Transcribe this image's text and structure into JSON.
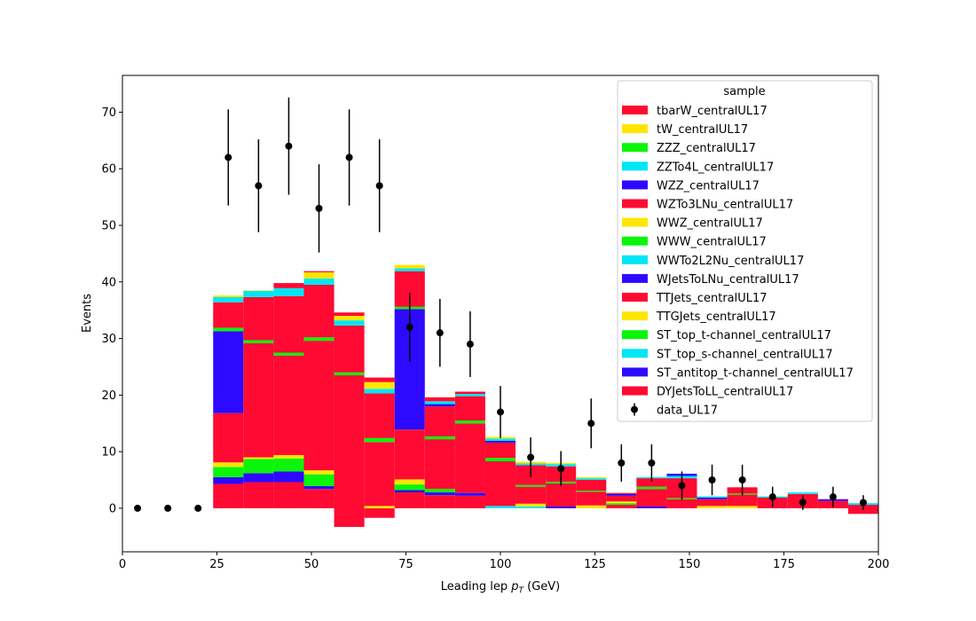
{
  "chart_data": {
    "type": "bar",
    "subtype": "stacked-histogram-with-data-points",
    "xlabel_main": "Leading lep ",
    "xlabel_sym": "p",
    "xlabel_sub": "T",
    "xlabel_unit": " (GeV)",
    "ylabel": "Events",
    "xlim": [
      0,
      200
    ],
    "ylim": [
      -7.7,
      76.5
    ],
    "x_ticks": [
      0,
      25,
      50,
      75,
      100,
      125,
      150,
      175,
      200
    ],
    "y_ticks": [
      0,
      10,
      20,
      30,
      40,
      50,
      60,
      70
    ],
    "legend": {
      "title": "sample",
      "placement": "top-right",
      "entries": [
        {
          "name": "tbarW_centralUL17",
          "color": "#ff0a32"
        },
        {
          "name": "tW_centralUL17",
          "color": "#ffe600"
        },
        {
          "name": "ZZZ_centralUL17",
          "color": "#0af50a"
        },
        {
          "name": "ZZTo4L_centralUL17",
          "color": "#00e6f5"
        },
        {
          "name": "WZZ_centralUL17",
          "color": "#2d0aff"
        },
        {
          "name": "WZTo3LNu_centralUL17",
          "color": "#ff0a32"
        },
        {
          "name": "WWZ_centralUL17",
          "color": "#ffe600"
        },
        {
          "name": "WWW_centralUL17",
          "color": "#0af50a"
        },
        {
          "name": "WWTo2L2Nu_centralUL17",
          "color": "#00e6f5"
        },
        {
          "name": "WJetsToLNu_centralUL17",
          "color": "#2d0aff"
        },
        {
          "name": "TTJets_centralUL17",
          "color": "#ff0a32"
        },
        {
          "name": "TTGJets_centralUL17",
          "color": "#ffe600"
        },
        {
          "name": "ST_top_t-channel_centralUL17",
          "color": "#0af50a"
        },
        {
          "name": "ST_top_s-channel_centralUL17",
          "color": "#00e6f5"
        },
        {
          "name": "ST_antitop_t-channel_centralUL17",
          "color": "#2d0aff"
        },
        {
          "name": "DYJetsToLL_centralUL17",
          "color": "#ff0a32"
        },
        {
          "name": "data_UL17",
          "marker": "point-with-errorbar",
          "color": "#000000"
        }
      ]
    },
    "stack_bins": [
      {
        "x0": 24,
        "x1": 32,
        "segments": [
          {
            "from": 0,
            "to": 4.3,
            "color": "#ff0a32"
          },
          {
            "from": 4.3,
            "to": 5.5,
            "color": "#2d0aff"
          },
          {
            "from": 5.5,
            "to": 7.3,
            "color": "#0af50a"
          },
          {
            "from": 7.3,
            "to": 8.1,
            "color": "#ffe600"
          },
          {
            "from": 8.1,
            "to": 16.8,
            "color": "#ff0a32"
          },
          {
            "from": 16.8,
            "to": 31.3,
            "color": "#2d0aff"
          },
          {
            "from": 31.3,
            "to": 31.9,
            "color": "#0af50a"
          },
          {
            "from": 31.9,
            "to": 36.4,
            "color": "#ff0a32"
          },
          {
            "from": 36.4,
            "to": 37.3,
            "color": "#00e6f5"
          },
          {
            "from": 37.3,
            "to": 37.6,
            "color": "#ffe600"
          }
        ]
      },
      {
        "x0": 32,
        "x1": 40,
        "segments": [
          {
            "from": 0,
            "to": 4.6,
            "color": "#ff0a32"
          },
          {
            "from": 4.6,
            "to": 6.2,
            "color": "#2d0aff"
          },
          {
            "from": 6.2,
            "to": 8.7,
            "color": "#0af50a"
          },
          {
            "from": 8.7,
            "to": 9.0,
            "color": "#ffe600"
          },
          {
            "from": 9.0,
            "to": 29.2,
            "color": "#ff0a32"
          },
          {
            "from": 29.2,
            "to": 29.7,
            "color": "#0af50a"
          },
          {
            "from": 29.7,
            "to": 37.3,
            "color": "#ff0a32"
          },
          {
            "from": 37.3,
            "to": 38.4,
            "color": "#00e6f5"
          },
          {
            "from": 38.4,
            "to": 38.5,
            "color": "#ffe600"
          }
        ]
      },
      {
        "x0": 40,
        "x1": 48,
        "segments": [
          {
            "from": 0,
            "to": 4.6,
            "color": "#ff0a32"
          },
          {
            "from": 4.6,
            "to": 6.5,
            "color": "#2d0aff"
          },
          {
            "from": 6.5,
            "to": 8.8,
            "color": "#0af50a"
          },
          {
            "from": 8.8,
            "to": 9.4,
            "color": "#ffe600"
          },
          {
            "from": 9.4,
            "to": 27.0,
            "color": "#ff0a32"
          },
          {
            "from": 27.0,
            "to": 27.5,
            "color": "#0af50a"
          },
          {
            "from": 27.5,
            "to": 37.5,
            "color": "#ff0a32"
          },
          {
            "from": 37.5,
            "to": 38.9,
            "color": "#00e6f5"
          },
          {
            "from": 38.9,
            "to": 39.8,
            "color": "#ff0a32"
          }
        ]
      },
      {
        "x0": 48,
        "x1": 56,
        "segments": [
          {
            "from": 0,
            "to": 3.4,
            "color": "#ff0a32"
          },
          {
            "from": 3.4,
            "to": 3.9,
            "color": "#2d0aff"
          },
          {
            "from": 3.9,
            "to": 6.0,
            "color": "#0af50a"
          },
          {
            "from": 6.0,
            "to": 6.7,
            "color": "#ffe600"
          },
          {
            "from": 6.7,
            "to": 29.6,
            "color": "#ff0a32"
          },
          {
            "from": 29.6,
            "to": 30.2,
            "color": "#0af50a"
          },
          {
            "from": 30.2,
            "to": 39.5,
            "color": "#ff0a32"
          },
          {
            "from": 39.5,
            "to": 40.6,
            "color": "#00e6f5"
          },
          {
            "from": 40.6,
            "to": 41.7,
            "color": "#ffe600"
          },
          {
            "from": 41.7,
            "to": 41.9,
            "color": "#ff0a32"
          }
        ]
      },
      {
        "x0": 56,
        "x1": 64,
        "segments": [
          {
            "from": -3.3,
            "to": 23.5,
            "color": "#ff0a32"
          },
          {
            "from": 23.5,
            "to": 24.0,
            "color": "#0af50a"
          },
          {
            "from": 24.0,
            "to": 32.3,
            "color": "#ff0a32"
          },
          {
            "from": 32.3,
            "to": 33.2,
            "color": "#00e6f5"
          },
          {
            "from": 33.2,
            "to": 34.0,
            "color": "#ffe600"
          },
          {
            "from": 34.0,
            "to": 34.6,
            "color": "#ff0a32"
          }
        ]
      },
      {
        "x0": 64,
        "x1": 72,
        "segments": [
          {
            "from": -1.7,
            "to": 0.0,
            "color": "#ff0a32"
          },
          {
            "from": 0.0,
            "to": 0.4,
            "color": "#ffe600"
          },
          {
            "from": 0.4,
            "to": 11.7,
            "color": "#ff0a32"
          },
          {
            "from": 11.7,
            "to": 12.4,
            "color": "#0af50a"
          },
          {
            "from": 12.4,
            "to": 20.3,
            "color": "#ff0a32"
          },
          {
            "from": 20.3,
            "to": 21.1,
            "color": "#00e6f5"
          },
          {
            "from": 21.1,
            "to": 22.3,
            "color": "#ffe600"
          },
          {
            "from": 22.3,
            "to": 23.1,
            "color": "#ff0a32"
          }
        ]
      },
      {
        "x0": 72,
        "x1": 80,
        "segments": [
          {
            "from": 0,
            "to": 2.8,
            "color": "#ff0a32"
          },
          {
            "from": 2.8,
            "to": 3.2,
            "color": "#2d0aff"
          },
          {
            "from": 3.2,
            "to": 4.2,
            "color": "#0af50a"
          },
          {
            "from": 4.2,
            "to": 5.1,
            "color": "#ffe600"
          },
          {
            "from": 5.1,
            "to": 13.9,
            "color": "#ff0a32"
          },
          {
            "from": 13.9,
            "to": 35.2,
            "color": "#2d0aff"
          },
          {
            "from": 35.2,
            "to": 35.6,
            "color": "#0af50a"
          },
          {
            "from": 35.6,
            "to": 41.9,
            "color": "#ff0a32"
          },
          {
            "from": 41.9,
            "to": 42.4,
            "color": "#00e6f5"
          },
          {
            "from": 42.4,
            "to": 43.0,
            "color": "#ffe600"
          }
        ]
      },
      {
        "x0": 80,
        "x1": 88,
        "segments": [
          {
            "from": 0,
            "to": 2.3,
            "color": "#ff0a32"
          },
          {
            "from": 2.3,
            "to": 2.8,
            "color": "#2d0aff"
          },
          {
            "from": 2.8,
            "to": 3.4,
            "color": "#0af50a"
          },
          {
            "from": 3.4,
            "to": 12.2,
            "color": "#ff0a32"
          },
          {
            "from": 12.2,
            "to": 12.7,
            "color": "#0af50a"
          },
          {
            "from": 12.7,
            "to": 18.0,
            "color": "#ff0a32"
          },
          {
            "from": 18.0,
            "to": 18.4,
            "color": "#2d0aff"
          },
          {
            "from": 18.4,
            "to": 18.9,
            "color": "#00e6f5"
          },
          {
            "from": 18.9,
            "to": 19.6,
            "color": "#ff0a32"
          }
        ]
      },
      {
        "x0": 88,
        "x1": 96,
        "segments": [
          {
            "from": 0,
            "to": 2.2,
            "color": "#ff0a32"
          },
          {
            "from": 2.2,
            "to": 2.7,
            "color": "#2d0aff"
          },
          {
            "from": 2.7,
            "to": 15.0,
            "color": "#ff0a32"
          },
          {
            "from": 15.0,
            "to": 15.5,
            "color": "#0af50a"
          },
          {
            "from": 15.5,
            "to": 19.8,
            "color": "#ff0a32"
          },
          {
            "from": 19.8,
            "to": 20.2,
            "color": "#00e6f5"
          },
          {
            "from": 20.2,
            "to": 20.6,
            "color": "#ff0a32"
          }
        ]
      },
      {
        "x0": 96,
        "x1": 104,
        "segments": [
          {
            "from": 0,
            "to": 0.4,
            "color": "#00e6f5"
          },
          {
            "from": 0.4,
            "to": 8.3,
            "color": "#ff0a32"
          },
          {
            "from": 8.3,
            "to": 8.9,
            "color": "#0af50a"
          },
          {
            "from": 8.9,
            "to": 11.6,
            "color": "#ff0a32"
          },
          {
            "from": 11.6,
            "to": 11.9,
            "color": "#2d0aff"
          },
          {
            "from": 11.9,
            "to": 12.3,
            "color": "#00e6f5"
          },
          {
            "from": 12.3,
            "to": 12.6,
            "color": "#ffe600"
          }
        ]
      },
      {
        "x0": 104,
        "x1": 112,
        "segments": [
          {
            "from": 0,
            "to": 0.3,
            "color": "#00e6f5"
          },
          {
            "from": 0.3,
            "to": 0.8,
            "color": "#ffe600"
          },
          {
            "from": 0.8,
            "to": 3.8,
            "color": "#ff0a32"
          },
          {
            "from": 3.8,
            "to": 4.1,
            "color": "#0af50a"
          },
          {
            "from": 4.1,
            "to": 7.6,
            "color": "#ff0a32"
          },
          {
            "from": 7.6,
            "to": 7.9,
            "color": "#00e6f5"
          },
          {
            "from": 7.9,
            "to": 8.2,
            "color": "#ffe600"
          }
        ]
      },
      {
        "x0": 112,
        "x1": 120,
        "segments": [
          {
            "from": 0,
            "to": 0.3,
            "color": "#2d0aff"
          },
          {
            "from": 0.3,
            "to": 4.4,
            "color": "#ff0a32"
          },
          {
            "from": 4.4,
            "to": 4.7,
            "color": "#0af50a"
          },
          {
            "from": 4.7,
            "to": 7.4,
            "color": "#ff0a32"
          },
          {
            "from": 7.4,
            "to": 7.8,
            "color": "#00e6f5"
          },
          {
            "from": 7.8,
            "to": 8.0,
            "color": "#ffe600"
          }
        ]
      },
      {
        "x0": 120,
        "x1": 128,
        "segments": [
          {
            "from": 0,
            "to": 0.5,
            "color": "#ffe600"
          },
          {
            "from": 0.5,
            "to": 2.9,
            "color": "#ff0a32"
          },
          {
            "from": 2.9,
            "to": 3.1,
            "color": "#0af50a"
          },
          {
            "from": 3.1,
            "to": 5.0,
            "color": "#ff0a32"
          },
          {
            "from": 5.0,
            "to": 5.3,
            "color": "#00e6f5"
          },
          {
            "from": 5.3,
            "to": 5.5,
            "color": "#ffe600"
          }
        ]
      },
      {
        "x0": 128,
        "x1": 136,
        "segments": [
          {
            "from": 0,
            "to": 0.6,
            "color": "#ff0a32"
          },
          {
            "from": 0.6,
            "to": 0.9,
            "color": "#0af50a"
          },
          {
            "from": 0.9,
            "to": 1.2,
            "color": "#ffe600"
          },
          {
            "from": 1.2,
            "to": 2.2,
            "color": "#ff0a32"
          },
          {
            "from": 2.2,
            "to": 2.5,
            "color": "#2d0aff"
          },
          {
            "from": 2.5,
            "to": 2.7,
            "color": "#ff0a32"
          }
        ]
      },
      {
        "x0": 136,
        "x1": 144,
        "segments": [
          {
            "from": 0,
            "to": 0.3,
            "color": "#2d0aff"
          },
          {
            "from": 0.3,
            "to": 3.4,
            "color": "#ff0a32"
          },
          {
            "from": 3.4,
            "to": 3.8,
            "color": "#0af50a"
          },
          {
            "from": 3.8,
            "to": 5.3,
            "color": "#ff0a32"
          },
          {
            "from": 5.3,
            "to": 5.5,
            "color": "#00e6f5"
          }
        ]
      },
      {
        "x0": 144,
        "x1": 152,
        "segments": [
          {
            "from": 0,
            "to": 1.6,
            "color": "#ff0a32"
          },
          {
            "from": 1.6,
            "to": 1.8,
            "color": "#0af50a"
          },
          {
            "from": 1.8,
            "to": 5.3,
            "color": "#ff0a32"
          },
          {
            "from": 5.3,
            "to": 5.7,
            "color": "#00e6f5"
          },
          {
            "from": 5.7,
            "to": 6.1,
            "color": "#2d0aff"
          }
        ]
      },
      {
        "x0": 152,
        "x1": 160,
        "segments": [
          {
            "from": 0,
            "to": 0.4,
            "color": "#ffe600"
          },
          {
            "from": 0.4,
            "to": 1.6,
            "color": "#ff0a32"
          },
          {
            "from": 1.6,
            "to": 1.9,
            "color": "#2d0aff"
          },
          {
            "from": 1.9,
            "to": 2.1,
            "color": "#00e6f5"
          }
        ]
      },
      {
        "x0": 160,
        "x1": 168,
        "segments": [
          {
            "from": 0,
            "to": 0.4,
            "color": "#ffe600"
          },
          {
            "from": 0.4,
            "to": 2.4,
            "color": "#ff0a32"
          },
          {
            "from": 2.4,
            "to": 2.6,
            "color": "#0af50a"
          },
          {
            "from": 2.6,
            "to": 3.7,
            "color": "#ff0a32"
          }
        ]
      },
      {
        "x0": 168,
        "x1": 176,
        "segments": [
          {
            "from": 0,
            "to": 1.9,
            "color": "#ff0a32"
          },
          {
            "from": 1.9,
            "to": 2.1,
            "color": "#00e6f5"
          }
        ]
      },
      {
        "x0": 176,
        "x1": 184,
        "segments": [
          {
            "from": 0,
            "to": 2.5,
            "color": "#ff0a32"
          },
          {
            "from": 2.5,
            "to": 2.8,
            "color": "#00e6f5"
          }
        ]
      },
      {
        "x0": 184,
        "x1": 192,
        "segments": [
          {
            "from": 0,
            "to": 1.3,
            "color": "#ff0a32"
          },
          {
            "from": 1.3,
            "to": 1.6,
            "color": "#2d0aff"
          }
        ]
      },
      {
        "x0": 192,
        "x1": 200,
        "segments": [
          {
            "from": -1.0,
            "to": 0.6,
            "color": "#ff0a32"
          },
          {
            "from": 0.6,
            "to": 0.9,
            "color": "#00e6f5"
          }
        ]
      }
    ],
    "data_points": {
      "name": "data_UL17",
      "x": [
        4,
        12,
        20,
        28,
        36,
        44,
        52,
        60,
        68,
        76,
        84,
        92,
        100,
        108,
        116,
        124,
        132,
        140,
        148,
        156,
        164,
        172,
        180,
        188,
        196
      ],
      "y": [
        0,
        0,
        0,
        62,
        57,
        64,
        53,
        62,
        57,
        32,
        31,
        29,
        17,
        9,
        7,
        15,
        8,
        8,
        4,
        5,
        5,
        2,
        1,
        2,
        1
      ],
      "err": [
        0,
        0,
        0,
        8.5,
        8.2,
        8.6,
        7.8,
        8.5,
        8.2,
        6.1,
        6.0,
        5.8,
        4.6,
        3.5,
        3.1,
        4.4,
        3.3,
        3.3,
        2.5,
        2.7,
        2.7,
        1.8,
        1.3,
        1.8,
        1.3
      ]
    }
  }
}
